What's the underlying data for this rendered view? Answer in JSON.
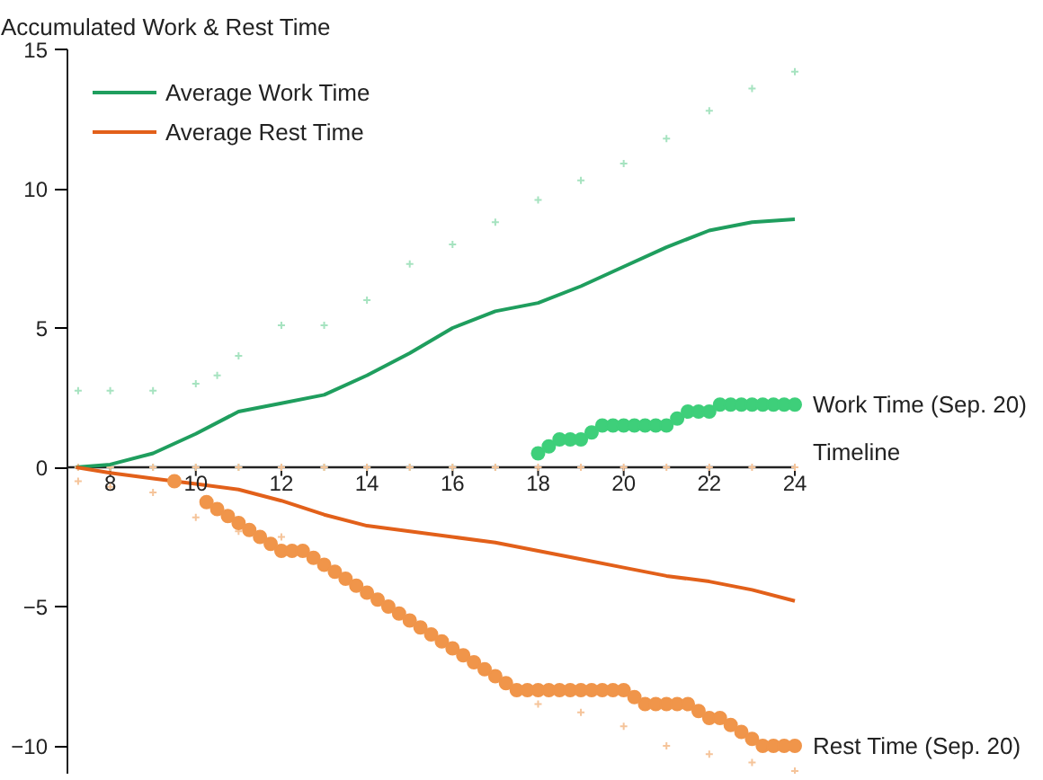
{
  "chart_data": {
    "type": "line",
    "ylabel": "Accumulated Work & Rest Time",
    "xlabel": "Timeline",
    "xlim": [
      7,
      24
    ],
    "xticks": [
      8,
      10,
      12,
      14,
      16,
      18,
      20,
      22,
      24
    ],
    "ylim": [
      -11,
      15
    ],
    "yticks": [
      -10,
      -5,
      0,
      5,
      10,
      15
    ],
    "grid": false,
    "legend": "top left",
    "series": [
      {
        "type": "scatter",
        "marker": "cross",
        "color": "#a6e3c0",
        "x": [
          7.25,
          8,
          9,
          10,
          10.5,
          11,
          12,
          13,
          14,
          15,
          16,
          17,
          18,
          19,
          20,
          21,
          22,
          23,
          24,
          7.25,
          8,
          9,
          10,
          11,
          12,
          13,
          14,
          15,
          16,
          17
        ],
        "values": [
          2.75,
          2.75,
          2.75,
          3,
          3.3,
          4,
          5.1,
          5.1,
          6,
          7.3,
          8,
          8.8,
          9.6,
          10.3,
          10.9,
          11.8,
          12.8,
          13.6,
          14.2,
          0,
          0,
          0,
          0,
          0,
          0,
          0,
          0,
          0,
          0,
          0
        ]
      },
      {
        "type": "scatter",
        "marker": "cross",
        "color": "#f5c49a",
        "x": [
          7.25,
          8,
          9,
          10,
          11,
          12,
          13,
          14,
          15,
          16,
          17,
          18,
          19,
          20,
          21,
          22,
          23,
          24,
          7.25,
          8,
          9,
          10,
          11,
          12,
          18,
          19,
          20,
          21,
          22,
          23,
          24
        ],
        "values": [
          0,
          0,
          0,
          0,
          0,
          0,
          0,
          0,
          0,
          0,
          0,
          0,
          0,
          0,
          0,
          0,
          0,
          0,
          -0.5,
          -0.7,
          -0.9,
          -1.8,
          -2.3,
          -2.5,
          -8.5,
          -8.8,
          -9.3,
          -10,
          -10.3,
          -10.6,
          -10.9
        ]
      },
      {
        "name": "Average Work Time",
        "color": "#1f9e5e",
        "marker": "none",
        "x": [
          7.2,
          8,
          9,
          10,
          11,
          12,
          13,
          14,
          15,
          16,
          17,
          18,
          19,
          20,
          21,
          22,
          23,
          24
        ],
        "values": [
          0,
          0.1,
          0.5,
          1.2,
          2,
          2.3,
          2.6,
          3.3,
          4.1,
          5,
          5.6,
          5.9,
          6.5,
          7.2,
          7.9,
          8.5,
          8.8,
          8.9
        ]
      },
      {
        "name": "Average Rest Time",
        "color": "#e2601a",
        "marker": "none",
        "x": [
          7.2,
          8,
          9,
          10,
          11,
          12,
          13,
          14,
          15,
          16,
          17,
          18,
          19,
          20,
          21,
          22,
          23,
          24
        ],
        "values": [
          0,
          -0.2,
          -0.4,
          -0.6,
          -0.8,
          -1.2,
          -1.7,
          -2.1,
          -2.3,
          -2.5,
          -2.7,
          -3,
          -3.3,
          -3.6,
          -3.9,
          -4.1,
          -4.4,
          -4.8
        ]
      },
      {
        "type": "scatter",
        "name": "Work Time (Sep. 20)",
        "marker": "circle",
        "color": "#3ecf7a",
        "x": [
          18,
          18.25,
          18.5,
          18.75,
          19,
          19.25,
          19.5,
          19.75,
          20,
          20.25,
          20.5,
          20.75,
          21,
          21.25,
          21.5,
          21.75,
          22,
          22.25,
          22.5,
          22.75,
          23,
          23.25,
          23.5,
          23.75,
          24
        ],
        "values": [
          0.5,
          0.75,
          1,
          1,
          1,
          1.25,
          1.5,
          1.5,
          1.5,
          1.5,
          1.5,
          1.5,
          1.5,
          1.75,
          2,
          2,
          2,
          2.25,
          2.25,
          2.25,
          2.25,
          2.25,
          2.25,
          2.25,
          2.25
        ]
      },
      {
        "type": "scatter",
        "name": "Rest Time (Sep. 20)",
        "marker": "circle",
        "color": "#f0954a",
        "x": [
          9.5,
          10.25,
          10.5,
          10.75,
          11,
          11.25,
          11.5,
          11.75,
          12,
          12.25,
          12.5,
          12.75,
          13,
          13.25,
          13.5,
          13.75,
          14,
          14.25,
          14.5,
          14.75,
          15,
          15.25,
          15.5,
          15.75,
          16,
          16.25,
          16.5,
          16.75,
          17,
          17.25,
          17.5,
          17.75,
          18,
          18.25,
          18.5,
          18.75,
          19,
          19.25,
          19.5,
          19.75,
          20,
          20.25,
          20.5,
          20.75,
          21,
          21.25,
          21.5,
          21.75,
          22,
          22.25,
          22.5,
          22.75,
          23,
          23.25,
          23.5,
          23.75,
          24
        ],
        "values": [
          -0.5,
          -1.25,
          -1.5,
          -1.75,
          -2,
          -2.25,
          -2.5,
          -2.75,
          -3,
          -3,
          -3,
          -3.25,
          -3.5,
          -3.75,
          -4,
          -4.25,
          -4.5,
          -4.75,
          -5,
          -5.25,
          -5.5,
          -5.75,
          -6,
          -6.25,
          -6.5,
          -6.75,
          -7,
          -7.25,
          -7.5,
          -7.75,
          -8,
          -8,
          -8,
          -8,
          -8,
          -8,
          -8,
          -8,
          -8,
          -8,
          -8,
          -8.25,
          -8.5,
          -8.5,
          -8.5,
          -8.5,
          -8.5,
          -8.75,
          -9,
          -9,
          -9.25,
          -9.5,
          -9.75,
          -10,
          -10,
          -10,
          -10
        ]
      }
    ]
  }
}
